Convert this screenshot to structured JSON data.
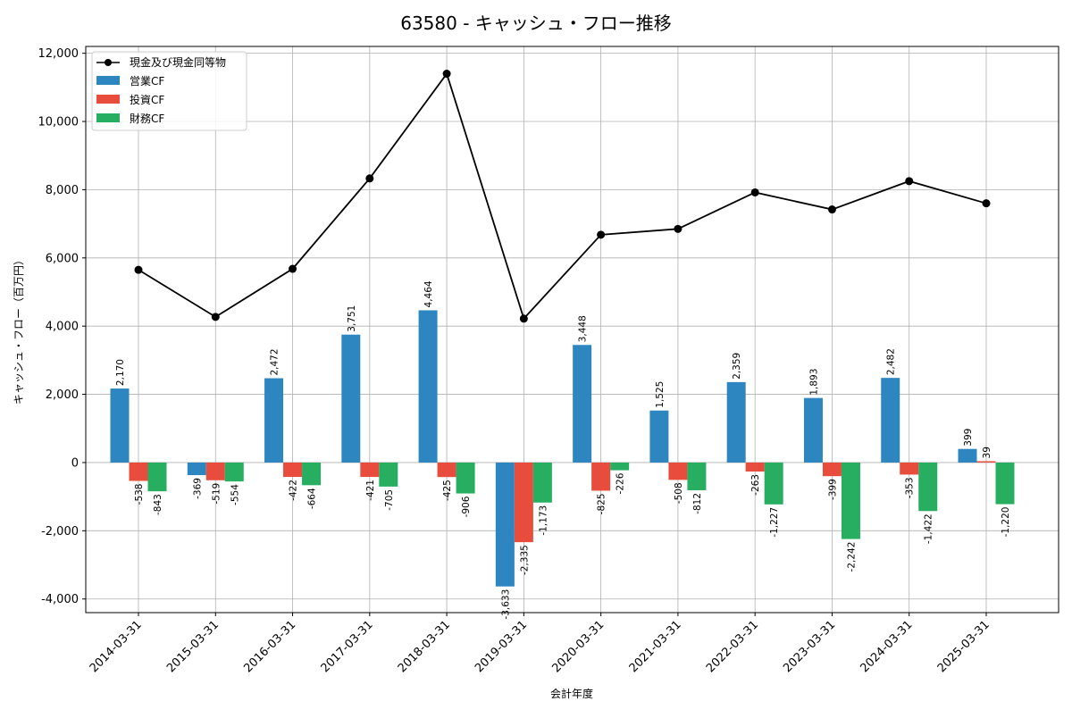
{
  "chart_data": {
    "type": "bar",
    "title": "63580 - キャッシュ・フロー推移",
    "xlabel": "会計年度",
    "ylabel": "キャッシュ・フロー（百万円）",
    "ylim": [
      -4400,
      12200
    ],
    "yticks": [
      -4000,
      -2000,
      0,
      2000,
      4000,
      6000,
      8000,
      10000,
      12000
    ],
    "ytick_labels": [
      "-4,000",
      "-2,000",
      "0",
      "2,000",
      "4,000",
      "6,000",
      "8,000",
      "10,000",
      "12,000"
    ],
    "grid": true,
    "legend_position": "top-left",
    "categories": [
      "2014-03-31",
      "2015-03-31",
      "2016-03-31",
      "2017-03-31",
      "2018-03-31",
      "2019-03-31",
      "2020-03-31",
      "2021-03-31",
      "2022-03-31",
      "2023-03-31",
      "2024-03-31",
      "2025-03-31"
    ],
    "series": [
      {
        "name": "営業CF",
        "kind": "bar",
        "color": "#2e86c1",
        "values": [
          2170,
          -369,
          2472,
          3751,
          4464,
          -3633,
          3448,
          1525,
          2359,
          1893,
          2482,
          399
        ],
        "labels": [
          "2,170",
          "-369",
          "2,472",
          "3,751",
          "4,464",
          "-3,633",
          "3,448",
          "1,525",
          "2,359",
          "1,893",
          "2,482",
          "399"
        ]
      },
      {
        "name": "投資CF",
        "kind": "bar",
        "color": "#e74c3c",
        "values": [
          -538,
          -519,
          -422,
          -421,
          -425,
          -2335,
          -825,
          -508,
          -263,
          -399,
          -353,
          39
        ],
        "labels": [
          "-538",
          "-519",
          "-422",
          "-421",
          "-425",
          "-2,335",
          "-825",
          "-508",
          "-263",
          "-399",
          "-353",
          "39"
        ]
      },
      {
        "name": "財務CF",
        "kind": "bar",
        "color": "#27ae60",
        "values": [
          -843,
          -554,
          -664,
          -705,
          -906,
          -1173,
          -226,
          -812,
          -1227,
          -2242,
          -1422,
          -1220
        ],
        "labels": [
          "-843",
          "-554",
          "-664",
          "-705",
          "-906",
          "-1,173",
          "-226",
          "-812",
          "-1,227",
          "-2,242",
          "-1,422",
          "-1,220"
        ]
      },
      {
        "name": "現金及び現金同等物",
        "kind": "line",
        "color": "#000000",
        "values": [
          5650,
          4270,
          5680,
          8330,
          11400,
          4220,
          6680,
          6850,
          7920,
          7420,
          8250,
          7600
        ]
      }
    ]
  }
}
